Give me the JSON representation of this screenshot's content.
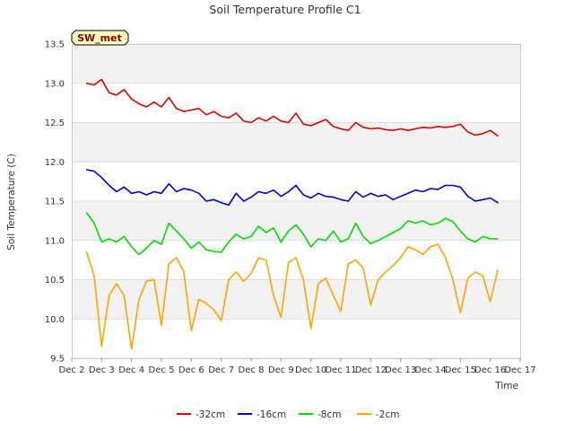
{
  "chart_data": {
    "type": "line",
    "title": "Soil Temperature Profile C1",
    "xlabel": "Time",
    "ylabel": "Soil Temperature (C)",
    "badge": "SW_met",
    "xlim": [
      "2024-12-02",
      "2024-12-17"
    ],
    "ylim": [
      9.5,
      13.5
    ],
    "x_ticks": [
      "Dec 2",
      "Dec 3",
      "Dec 4",
      "Dec 5",
      "Dec 6",
      "Dec 7",
      "Dec 8",
      "Dec 9",
      "Dec 10",
      "Dec 11",
      "Dec 12",
      "Dec 13",
      "Dec 14",
      "Dec 15",
      "Dec 16",
      "Dec 17"
    ],
    "y_ticks": [
      "9.5",
      "10.0",
      "10.5",
      "11.0",
      "11.5",
      "12.0",
      "12.5",
      "13.0",
      "13.5"
    ],
    "grid": true,
    "background_bands": true,
    "legend_position": "bottom-center",
    "x": [
      "2024-12-02T12:00",
      "2024-12-02T18:00",
      "2024-12-03T00:00",
      "2024-12-03T06:00",
      "2024-12-03T12:00",
      "2024-12-03T18:00",
      "2024-12-04T00:00",
      "2024-12-04T06:00",
      "2024-12-04T12:00",
      "2024-12-04T18:00",
      "2024-12-05T00:00",
      "2024-12-05T06:00",
      "2024-12-05T12:00",
      "2024-12-05T18:00",
      "2024-12-06T00:00",
      "2024-12-06T06:00",
      "2024-12-06T12:00",
      "2024-12-06T18:00",
      "2024-12-07T00:00",
      "2024-12-07T06:00",
      "2024-12-07T12:00",
      "2024-12-07T18:00",
      "2024-12-08T00:00",
      "2024-12-08T06:00",
      "2024-12-08T12:00",
      "2024-12-08T18:00",
      "2024-12-09T00:00",
      "2024-12-09T06:00",
      "2024-12-09T12:00",
      "2024-12-09T18:00",
      "2024-12-10T00:00",
      "2024-12-10T06:00",
      "2024-12-10T12:00",
      "2024-12-10T18:00",
      "2024-12-11T00:00",
      "2024-12-11T06:00",
      "2024-12-11T12:00",
      "2024-12-11T18:00",
      "2024-12-12T00:00",
      "2024-12-12T06:00",
      "2024-12-12T12:00",
      "2024-12-12T18:00",
      "2024-12-13T00:00",
      "2024-12-13T06:00",
      "2024-12-13T12:00",
      "2024-12-13T18:00",
      "2024-12-14T00:00",
      "2024-12-14T06:00",
      "2024-12-14T12:00",
      "2024-12-14T18:00",
      "2024-12-15T00:00",
      "2024-12-15T06:00",
      "2024-12-15T12:00",
      "2024-12-15T18:00",
      "2024-12-16T00:00",
      "2024-12-16T06:00"
    ],
    "series": [
      {
        "name": "-32cm",
        "color": "#dd0000",
        "values": [
          13.0,
          12.98,
          13.05,
          12.88,
          12.85,
          12.92,
          12.8,
          12.74,
          12.7,
          12.76,
          12.7,
          12.82,
          12.68,
          12.64,
          12.66,
          12.68,
          12.6,
          12.64,
          12.58,
          12.56,
          12.62,
          12.52,
          12.5,
          12.56,
          12.52,
          12.58,
          12.52,
          12.5,
          12.62,
          12.48,
          12.46,
          12.5,
          12.54,
          12.45,
          12.42,
          12.4,
          12.5,
          12.44,
          12.42,
          12.43,
          12.41,
          12.4,
          12.42,
          12.4,
          12.42,
          12.44,
          12.43,
          12.45,
          12.44,
          12.45,
          12.48,
          12.38,
          12.34,
          12.36,
          12.4,
          12.33
        ]
      },
      {
        "name": "-16cm",
        "color": "#0000cc",
        "values": [
          11.9,
          11.88,
          11.8,
          11.7,
          11.62,
          11.68,
          11.6,
          11.62,
          11.58,
          11.62,
          11.6,
          11.72,
          11.62,
          11.66,
          11.64,
          11.6,
          11.5,
          11.52,
          11.48,
          11.45,
          11.6,
          11.5,
          11.55,
          11.62,
          11.6,
          11.64,
          11.56,
          11.62,
          11.7,
          11.58,
          11.54,
          11.6,
          11.56,
          11.55,
          11.52,
          11.5,
          11.62,
          11.55,
          11.6,
          11.56,
          11.58,
          11.52,
          11.56,
          11.6,
          11.64,
          11.62,
          11.66,
          11.65,
          11.7,
          11.7,
          11.68,
          11.56,
          11.5,
          11.52,
          11.54,
          11.48
        ]
      },
      {
        "name": "-8cm",
        "color": "#00dd00",
        "values": [
          11.35,
          11.22,
          10.98,
          11.02,
          10.98,
          11.05,
          10.92,
          10.82,
          10.9,
          11.0,
          10.95,
          11.22,
          11.12,
          11.02,
          10.9,
          10.98,
          10.88,
          10.86,
          10.85,
          10.98,
          11.08,
          11.02,
          11.05,
          11.18,
          11.1,
          11.16,
          10.98,
          11.12,
          11.2,
          11.08,
          10.92,
          11.02,
          11.0,
          11.12,
          10.98,
          11.02,
          11.22,
          11.05,
          10.96,
          11.0,
          11.05,
          11.1,
          11.15,
          11.25,
          11.22,
          11.25,
          11.2,
          11.22,
          11.28,
          11.24,
          11.12,
          11.02,
          10.98,
          11.05,
          11.02,
          11.02
        ]
      },
      {
        "name": "-2cm",
        "color": "#ffa500",
        "values": [
          10.85,
          10.55,
          9.65,
          10.3,
          10.45,
          10.3,
          9.62,
          10.25,
          10.48,
          10.5,
          9.92,
          10.7,
          10.78,
          10.6,
          9.85,
          10.25,
          10.2,
          10.12,
          9.98,
          10.5,
          10.6,
          10.48,
          10.58,
          10.78,
          10.75,
          10.3,
          10.02,
          10.72,
          10.78,
          10.5,
          9.88,
          10.45,
          10.52,
          10.3,
          10.1,
          10.7,
          10.75,
          10.65,
          10.18,
          10.5,
          10.6,
          10.68,
          10.78,
          10.92,
          10.88,
          10.82,
          10.92,
          10.95,
          10.78,
          10.5,
          10.08,
          10.52,
          10.6,
          10.55,
          10.22,
          10.62
        ]
      }
    ]
  }
}
